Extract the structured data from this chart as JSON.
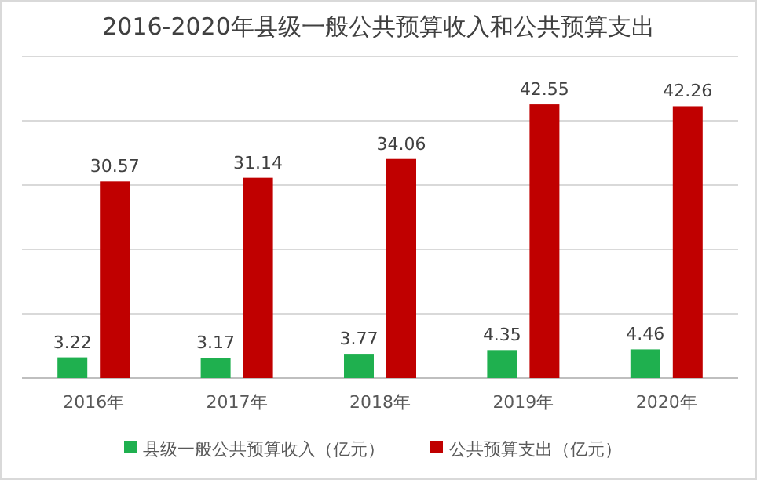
{
  "chart_data": {
    "type": "bar",
    "title": "2016-2020年县级一般公共预算收入和公共预算支出",
    "categories": [
      "2016年",
      "2017年",
      "2018年",
      "2019年",
      "2020年"
    ],
    "series": [
      {
        "name": "县级一般公共预算收入（亿元）",
        "color": "#1fb04f",
        "values": [
          3.22,
          3.17,
          3.77,
          4.35,
          4.46
        ]
      },
      {
        "name": "公共预算支出（亿元）",
        "color": "#c00000",
        "values": [
          30.57,
          31.14,
          34.06,
          42.55,
          42.26
        ]
      }
    ],
    "ylim": [
      0,
      50
    ],
    "yticks": [
      {
        "value": 0,
        "label": null
      },
      {
        "value": 10,
        "label": null
      },
      {
        "value": 20,
        "label": null
      },
      {
        "value": 30,
        "label": null
      },
      {
        "value": 40,
        "label": null
      },
      {
        "value": 50,
        "label": null
      }
    ],
    "grid": "y",
    "legend": "bottom",
    "data_labels": true
  }
}
